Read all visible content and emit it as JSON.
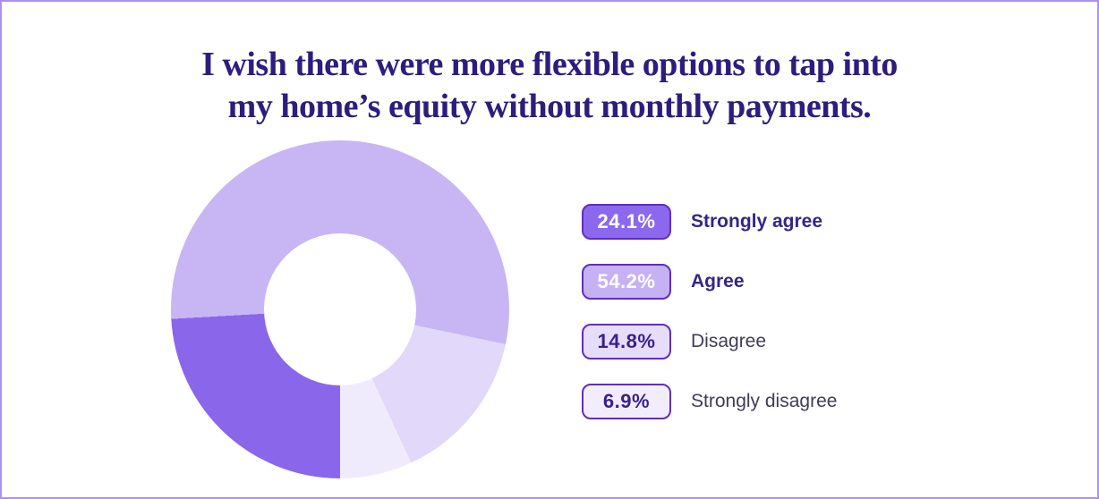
{
  "canvas": {
    "background": "#ffffff",
    "border_color": "#ac91f1"
  },
  "title": {
    "line1": "I wish there were more flexible options to tap into",
    "line2": "my home’s equity without monthly payments.",
    "color": "#2e1c7e"
  },
  "chart_data": {
    "type": "pie",
    "subtype": "donut",
    "title": "I wish there were more flexible options to tap into my home’s equity without monthly payments.",
    "categories": [
      "Strongly agree",
      "Agree",
      "Disagree",
      "Strongly disagree"
    ],
    "values": [
      24.1,
      54.2,
      14.8,
      6.9
    ],
    "unit": "%",
    "colors": [
      "#8a66ea",
      "#c8b6f4",
      "#e2d8fa",
      "#f0ebfc"
    ],
    "start_angle_deg_from_top": 180,
    "direction": "clockwise",
    "inner_radius_ratio": 0.45,
    "legend_position": "right",
    "grid": false
  },
  "legend": {
    "badge_border_color": "#5e2fbe",
    "items": [
      {
        "value": "24.1%",
        "label": "Strongly agree",
        "badge_bg": "#8c68ef",
        "badge_text": "#ffffff",
        "label_bold": true
      },
      {
        "value": "54.2%",
        "label": "Agree",
        "badge_bg": "#c6b1f5",
        "badge_text": "#ffffff",
        "label_bold": true
      },
      {
        "value": "14.8%",
        "label": "Disagree",
        "badge_bg": "#e6ddfa",
        "badge_text": "#3a1f8f",
        "label_bold": false
      },
      {
        "value": "6.9%",
        "label": "Strongly disagree",
        "badge_bg": "#f2edfc",
        "badge_text": "#3a1f8f",
        "label_bold": false
      }
    ]
  }
}
